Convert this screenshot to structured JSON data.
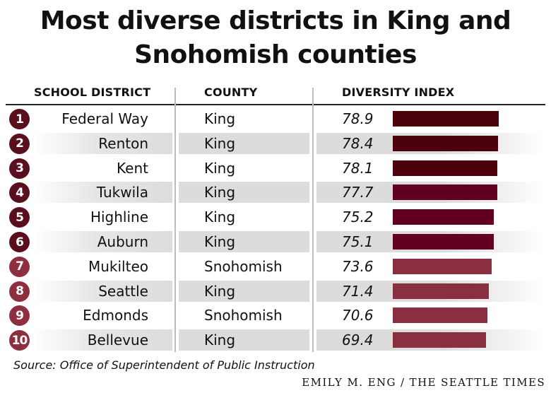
{
  "title": "Most diverse districts in King and Snohomish counties",
  "colors": {
    "rank_dark": "#5a0f1e",
    "rank_light": "#8e2f40"
  },
  "chart_data": {
    "type": "table",
    "columns": [
      "SCHOOL DISTRICT",
      "COUNTY",
      "DIVERSITY INDEX"
    ],
    "rows": [
      {
        "rank": "1",
        "district": "Federal Way",
        "county": "King",
        "index": "78.9",
        "value": 78.9,
        "color": "#4c000c"
      },
      {
        "rank": "2",
        "district": "Renton",
        "county": "King",
        "index": "78.4",
        "value": 78.4,
        "color": "#4c000c"
      },
      {
        "rank": "3",
        "district": "Kent",
        "county": "King",
        "index": "78.1",
        "value": 78.1,
        "color": "#4c000c"
      },
      {
        "rank": "4",
        "district": "Tukwila",
        "county": "King",
        "index": "77.7",
        "value": 77.7,
        "color": "#630021"
      },
      {
        "rank": "5",
        "district": "Highline",
        "county": "King",
        "index": "75.2",
        "value": 75.2,
        "color": "#630021"
      },
      {
        "rank": "6",
        "district": "Auburn",
        "county": "King",
        "index": "75.1",
        "value": 75.1,
        "color": "#630021"
      },
      {
        "rank": "7",
        "district": "Mukilteo",
        "county": "Snohomish",
        "index": "73.6",
        "value": 73.6,
        "color": "#8a2f40"
      },
      {
        "rank": "8",
        "district": "Seattle",
        "county": "King",
        "index": "71.4",
        "value": 71.4,
        "color": "#8a2f40"
      },
      {
        "rank": "9",
        "district": "Edmonds",
        "county": "Snohomish",
        "index": "70.6",
        "value": 70.6,
        "color": "#8a2f40"
      },
      {
        "rank": "10",
        "district": "Bellevue",
        "county": "King",
        "index": "69.4",
        "value": 69.4,
        "color": "#8a2f40"
      }
    ],
    "source": "Source: Office of Superintendent of Public Instruction",
    "credit": "EMILY M. ENG / THE SEATTLE TIMES"
  }
}
